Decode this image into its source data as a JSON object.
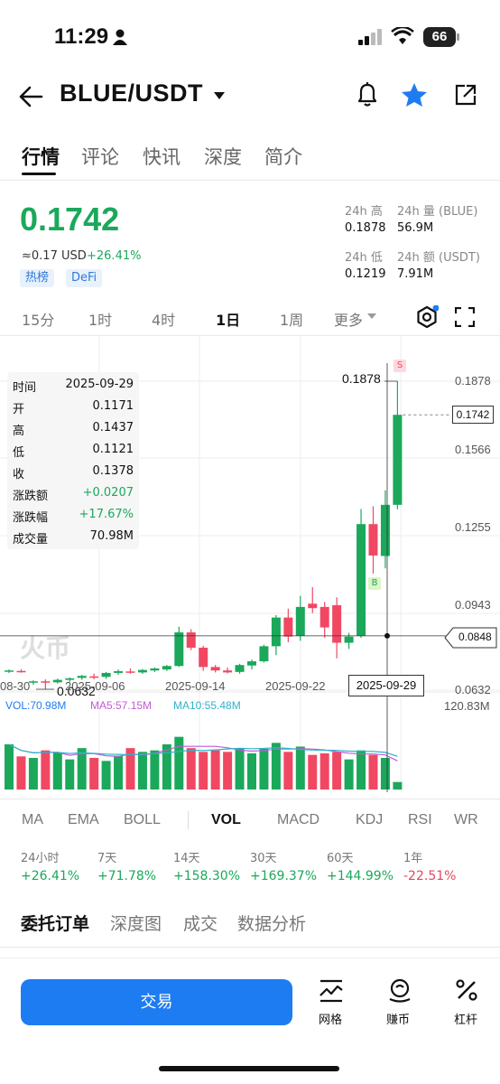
{
  "status_bar": {
    "time": "11:29",
    "battery": "66"
  },
  "header": {
    "pair": "BLUE/USDT"
  },
  "tabs": [
    "行情",
    "评论",
    "快讯",
    "深度",
    "简介"
  ],
  "ticker": {
    "last_price": "0.1742",
    "usd_approx": "≈0.17 USD",
    "change_pct": "+26.41%",
    "tags": [
      "热榜",
      "DeFi"
    ],
    "high_label": "24h 高",
    "high": "0.1878",
    "vol_base_label": "24h 量 (BLUE)",
    "vol_base": "56.9M",
    "low_label": "24h 低",
    "low": "0.1219",
    "vol_quote_label": "24h 额 (USDT)",
    "vol_quote": "7.91M"
  },
  "intervals": [
    "15分",
    "1时",
    "4时",
    "1日",
    "1周",
    "更多"
  ],
  "active_interval": "1日",
  "ohlc_tooltip": [
    {
      "k": "时间",
      "v": "2025-09-29",
      "color": "#111111"
    },
    {
      "k": "开",
      "v": "0.1171",
      "color": "#111111"
    },
    {
      "k": "高",
      "v": "0.1437",
      "color": "#111111"
    },
    {
      "k": "低",
      "v": "0.1121",
      "color": "#111111"
    },
    {
      "k": "收",
      "v": "0.1378",
      "color": "#111111"
    },
    {
      "k": "涨跌额",
      "v": "+0.0207",
      "color": "#1ba85b"
    },
    {
      "k": "涨跌幅",
      "v": "+17.67%",
      "color": "#1ba85b"
    },
    {
      "k": "成交量",
      "v": "70.98M",
      "color": "#111111"
    }
  ],
  "chart_data": {
    "type": "candlestick",
    "price_ticks": [
      "0.1878",
      "0.1566",
      "0.1255",
      "0.0943",
      "0.0632"
    ],
    "date_labels": [
      "08-30",
      "2025-09-06",
      "2025-09-14",
      "2025-09-22",
      "2025-09-29"
    ],
    "last_price_label": "0.1742",
    "crosshair_price_label": "0.0848",
    "crosshair_date_label": "2025-09-29",
    "max_label": "0.1878",
    "min_label": "0.0632",
    "sell_marker": "S",
    "buy_marker": "B",
    "watermark": "火币",
    "candles": [
      {
        "o": 0.0705,
        "h": 0.0712,
        "l": 0.0698,
        "c": 0.0708
      },
      {
        "o": 0.0706,
        "h": 0.0713,
        "l": 0.0699,
        "c": 0.0704
      },
      {
        "o": 0.066,
        "h": 0.0668,
        "l": 0.065,
        "c": 0.0664
      },
      {
        "o": 0.0664,
        "h": 0.0672,
        "l": 0.0632,
        "c": 0.066
      },
      {
        "o": 0.066,
        "h": 0.0675,
        "l": 0.0655,
        "c": 0.067
      },
      {
        "o": 0.067,
        "h": 0.068,
        "l": 0.0662,
        "c": 0.0676
      },
      {
        "o": 0.0678,
        "h": 0.069,
        "l": 0.067,
        "c": 0.0686
      },
      {
        "o": 0.0684,
        "h": 0.0695,
        "l": 0.0672,
        "c": 0.068
      },
      {
        "o": 0.0682,
        "h": 0.0702,
        "l": 0.0674,
        "c": 0.0698
      },
      {
        "o": 0.0698,
        "h": 0.0712,
        "l": 0.069,
        "c": 0.0705
      },
      {
        "o": 0.0704,
        "h": 0.0716,
        "l": 0.0695,
        "c": 0.07
      },
      {
        "o": 0.07,
        "h": 0.0714,
        "l": 0.0694,
        "c": 0.071
      },
      {
        "o": 0.0708,
        "h": 0.072,
        "l": 0.0702,
        "c": 0.0716
      },
      {
        "o": 0.0712,
        "h": 0.073,
        "l": 0.0706,
        "c": 0.0726
      },
      {
        "o": 0.0726,
        "h": 0.0885,
        "l": 0.0722,
        "c": 0.0862
      },
      {
        "o": 0.0862,
        "h": 0.0875,
        "l": 0.079,
        "c": 0.08
      },
      {
        "o": 0.08,
        "h": 0.0808,
        "l": 0.0706,
        "c": 0.0722
      },
      {
        "o": 0.0722,
        "h": 0.073,
        "l": 0.07,
        "c": 0.0708
      },
      {
        "o": 0.0708,
        "h": 0.072,
        "l": 0.0696,
        "c": 0.07
      },
      {
        "o": 0.0702,
        "h": 0.0735,
        "l": 0.0695,
        "c": 0.073
      },
      {
        "o": 0.0728,
        "h": 0.0752,
        "l": 0.0712,
        "c": 0.0745
      },
      {
        "o": 0.0745,
        "h": 0.0812,
        "l": 0.074,
        "c": 0.0806
      },
      {
        "o": 0.0806,
        "h": 0.0932,
        "l": 0.077,
        "c": 0.0922
      },
      {
        "o": 0.0922,
        "h": 0.0958,
        "l": 0.0822,
        "c": 0.0845
      },
      {
        "o": 0.0848,
        "h": 0.101,
        "l": 0.0828,
        "c": 0.0965
      },
      {
        "o": 0.0978,
        "h": 0.1045,
        "l": 0.094,
        "c": 0.096
      },
      {
        "o": 0.0965,
        "h": 0.0985,
        "l": 0.084,
        "c": 0.0882
      },
      {
        "o": 0.0972,
        "h": 0.1004,
        "l": 0.0757,
        "c": 0.082
      },
      {
        "o": 0.082,
        "h": 0.086,
        "l": 0.0795,
        "c": 0.0845
      },
      {
        "o": 0.0848,
        "h": 0.1361,
        "l": 0.084,
        "c": 0.13
      },
      {
        "o": 0.13,
        "h": 0.1372,
        "l": 0.11,
        "c": 0.1173
      },
      {
        "o": 0.1171,
        "h": 0.1437,
        "l": 0.1121,
        "c": 0.1378
      },
      {
        "o": 0.1378,
        "h": 0.1878,
        "l": 0.136,
        "c": 0.1742
      }
    ],
    "volumes": [
      60,
      44,
      42,
      52,
      49,
      40,
      55,
      42,
      38,
      45,
      55,
      50,
      52,
      60,
      70,
      55,
      50,
      52,
      50,
      55,
      48,
      54,
      62,
      50,
      57,
      46,
      48,
      50,
      40,
      52,
      46,
      42,
      10
    ]
  },
  "volume_panel": {
    "vol_label": "VOL:70.98M",
    "ma5_label": "MA5:57.15M",
    "ma10_label": "MA10:55.48M",
    "max_label": "120.83M"
  },
  "indicators": [
    "MA",
    "EMA",
    "BOLL",
    "VOL",
    "MACD",
    "KDJ",
    "RSI",
    "WR"
  ],
  "active_indicator": "VOL",
  "performance": [
    {
      "label": "24小时",
      "value": "+26.41%",
      "color": "#1ba85b"
    },
    {
      "label": "7天",
      "value": "+71.78%",
      "color": "#1ba85b"
    },
    {
      "label": "14天",
      "value": "+158.30%",
      "color": "#1ba85b"
    },
    {
      "label": "30天",
      "value": "+169.37%",
      "color": "#1ba85b"
    },
    {
      "label": "60天",
      "value": "+144.99%",
      "color": "#1ba85b"
    },
    {
      "label": "1年",
      "value": "-22.51%",
      "color": "#e8455a"
    }
  ],
  "order_tabs": [
    "委托订单",
    "深度图",
    "成交",
    "数据分析"
  ],
  "bottom": {
    "trade": "交易",
    "grid": "网格",
    "earn": "赚币",
    "leverage": "杠杆"
  },
  "colors": {
    "up": "#1ba85b",
    "down": "#f04862",
    "accent": "#1e7cf2"
  }
}
